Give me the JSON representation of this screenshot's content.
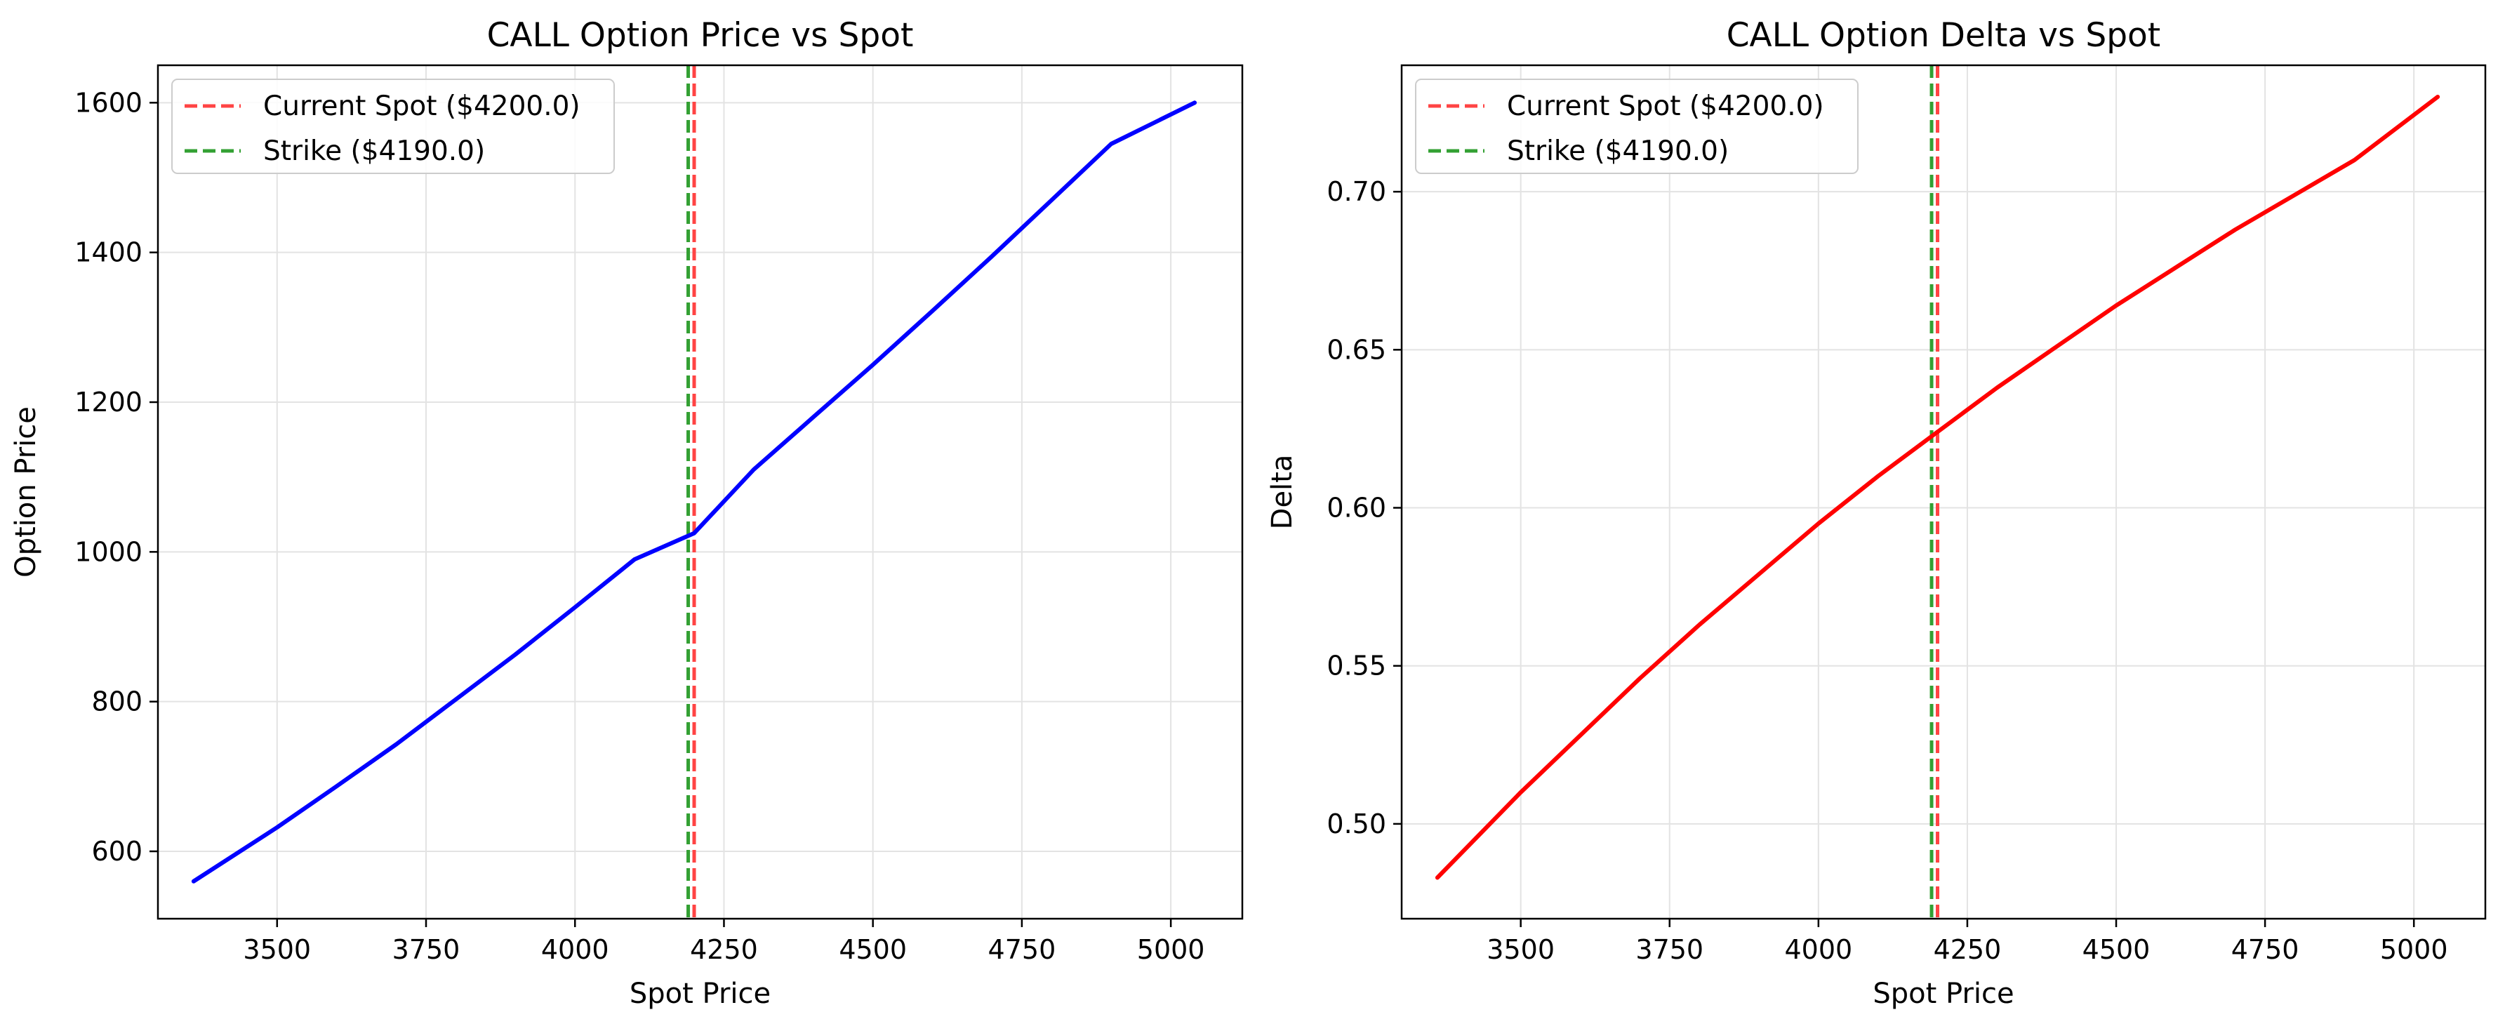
{
  "chart_data": [
    {
      "type": "line",
      "title": "CALL Option Price vs Spot",
      "xlabel": "Spot Price",
      "ylabel": "Option Price",
      "xlim": [
        3300,
        5120
      ],
      "ylim": [
        510,
        1650
      ],
      "xticks": [
        3500,
        3750,
        4000,
        4250,
        4500,
        4750,
        5000
      ],
      "yticks": [
        600,
        800,
        1000,
        1200,
        1400,
        1600
      ],
      "grid": true,
      "legend_position": "upper-left",
      "series": [
        {
          "color": "#0000ff",
          "x": [
            3360,
            3500,
            3600,
            3700,
            3800,
            3900,
            4000,
            4100,
            4200,
            4300,
            4400,
            4500,
            4600,
            4700,
            4800,
            4900,
            5040
          ],
          "y": [
            560,
            632,
            687,
            743,
            803,
            863,
            926,
            990,
            1025,
            1110,
            1180,
            1250,
            1322,
            1395,
            1470,
            1545,
            1600
          ]
        }
      ],
      "vlines": [
        {
          "label": "Current Spot ($4200.0)",
          "x": 4200.0,
          "color": "#ff4444",
          "style": "dashed"
        },
        {
          "label": "Strike ($4190.0)",
          "x": 4190.0,
          "color": "#33a033",
          "style": "dashed"
        }
      ]
    },
    {
      "type": "line",
      "title": "CALL Option Delta vs Spot",
      "xlabel": "Spot Price",
      "ylabel": "Delta",
      "xlim": [
        3300,
        5120
      ],
      "ylim": [
        0.47,
        0.74
      ],
      "xticks": [
        3500,
        3750,
        4000,
        4250,
        4500,
        4750,
        5000
      ],
      "yticks": [
        0.5,
        0.55,
        0.6,
        0.65,
        0.7
      ],
      "ytick_format": 2,
      "grid": true,
      "legend_position": "upper-left",
      "series": [
        {
          "color": "#ff0000",
          "x": [
            3360,
            3500,
            3600,
            3700,
            3800,
            3900,
            4000,
            4100,
            4200,
            4300,
            4400,
            4500,
            4600,
            4700,
            4800,
            4900,
            5040
          ],
          "y": [
            0.483,
            0.51,
            0.528,
            0.546,
            0.563,
            0.579,
            0.595,
            0.61,
            0.624,
            0.638,
            0.651,
            0.664,
            0.676,
            0.688,
            0.699,
            0.71,
            0.73
          ]
        }
      ],
      "vlines": [
        {
          "label": "Current Spot ($4200.0)",
          "x": 4200.0,
          "color": "#ff4444",
          "style": "dashed"
        },
        {
          "label": "Strike ($4190.0)",
          "x": 4190.0,
          "color": "#33a033",
          "style": "dashed"
        }
      ]
    }
  ]
}
